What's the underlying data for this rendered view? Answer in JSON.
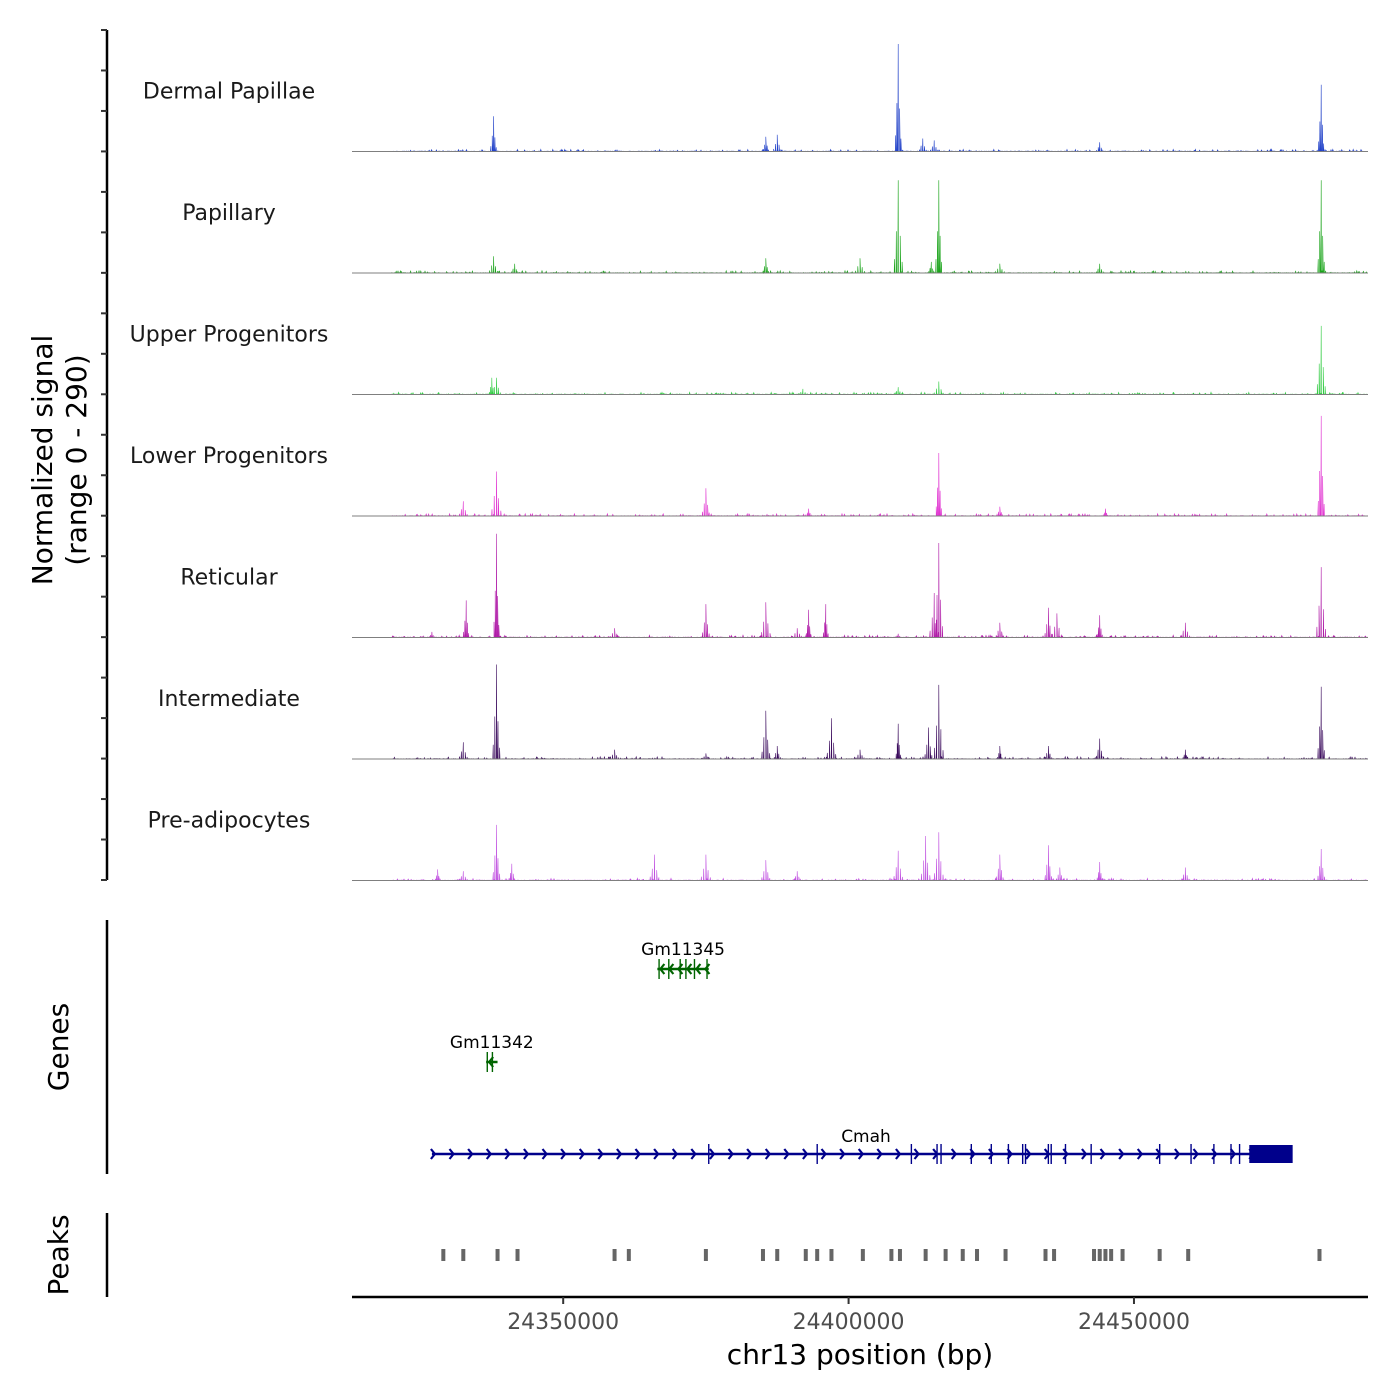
{
  "chart_data": {
    "type": "area",
    "title": "",
    "region": "chr13",
    "xlabel": "chr13 position (bp)",
    "ylabel_line1": "Normalized signal",
    "ylabel_line2": "(range 0 - 290)",
    "xlim": [
      24313000,
      24491000
    ],
    "ylim": [
      0,
      290
    ],
    "x_ticks": [
      24350000,
      24400000,
      24450000
    ],
    "x_tick_labels": [
      "24350000",
      "24400000",
      "24450000"
    ],
    "series": [
      {
        "name": "Dermal Papillae",
        "color": "#2040c8",
        "peaks": [
          [
            24337800,
            95
          ],
          [
            24385500,
            40
          ],
          [
            24387500,
            45
          ],
          [
            24408700,
            290
          ],
          [
            24413000,
            35
          ],
          [
            24415000,
            30
          ],
          [
            24444000,
            25
          ],
          [
            24482800,
            180
          ]
        ]
      },
      {
        "name": "Papillary",
        "color": "#18a318",
        "peaks": [
          [
            24337800,
            45
          ],
          [
            24341500,
            25
          ],
          [
            24385500,
            40
          ],
          [
            24402000,
            40
          ],
          [
            24408700,
            250
          ],
          [
            24414500,
            30
          ],
          [
            24415800,
            250
          ],
          [
            24426500,
            25
          ],
          [
            24444000,
            25
          ],
          [
            24482800,
            250
          ]
        ]
      },
      {
        "name": "Upper Progenitors",
        "color": "#33cc44",
        "peaks": [
          [
            24337500,
            45
          ],
          [
            24338300,
            45
          ],
          [
            24392000,
            15
          ],
          [
            24408700,
            20
          ],
          [
            24415800,
            35
          ],
          [
            24482800,
            185
          ]
        ]
      },
      {
        "name": "Lower Progenitors",
        "color": "#e030d0",
        "peaks": [
          [
            24332500,
            40
          ],
          [
            24338300,
            120
          ],
          [
            24375000,
            75
          ],
          [
            24393000,
            20
          ],
          [
            24415800,
            170
          ],
          [
            24426500,
            25
          ],
          [
            24445000,
            20
          ],
          [
            24482800,
            270
          ]
        ]
      },
      {
        "name": "Reticular",
        "color": "#b01ca8",
        "peaks": [
          [
            24327000,
            15
          ],
          [
            24333000,
            100
          ],
          [
            24338300,
            280
          ],
          [
            24359000,
            25
          ],
          [
            24375000,
            90
          ],
          [
            24385500,
            95
          ],
          [
            24391000,
            25
          ],
          [
            24393000,
            75
          ],
          [
            24396000,
            90
          ],
          [
            24408700,
            10
          ],
          [
            24415000,
            120
          ],
          [
            24415800,
            255
          ],
          [
            24426500,
            40
          ],
          [
            24435000,
            80
          ],
          [
            24436500,
            65
          ],
          [
            24444000,
            60
          ],
          [
            24459000,
            40
          ],
          [
            24482800,
            190
          ]
        ]
      },
      {
        "name": "Intermediate",
        "color": "#3a0a5c",
        "peaks": [
          [
            24332500,
            45
          ],
          [
            24338300,
            255
          ],
          [
            24359000,
            25
          ],
          [
            24375000,
            15
          ],
          [
            24385500,
            130
          ],
          [
            24387500,
            35
          ],
          [
            24397000,
            110
          ],
          [
            24402000,
            25
          ],
          [
            24408700,
            95
          ],
          [
            24414000,
            85
          ],
          [
            24415800,
            200
          ],
          [
            24426500,
            35
          ],
          [
            24435000,
            35
          ],
          [
            24444000,
            55
          ],
          [
            24459000,
            25
          ],
          [
            24482800,
            195
          ]
        ]
      },
      {
        "name": "Pre-adipocytes",
        "color": "#c050e0",
        "peaks": [
          [
            24328000,
            30
          ],
          [
            24332500,
            25
          ],
          [
            24338300,
            150
          ],
          [
            24341000,
            45
          ],
          [
            24366000,
            70
          ],
          [
            24375000,
            70
          ],
          [
            24385500,
            55
          ],
          [
            24391000,
            25
          ],
          [
            24408700,
            80
          ],
          [
            24413500,
            120
          ],
          [
            24415800,
            130
          ],
          [
            24426500,
            70
          ],
          [
            24435000,
            95
          ],
          [
            24437000,
            35
          ],
          [
            24444000,
            50
          ],
          [
            24459000,
            35
          ],
          [
            24482800,
            85
          ]
        ]
      }
    ],
    "genes": [
      {
        "name": "Gm11345",
        "strand": "-",
        "start": 24366500,
        "end": 24375500,
        "row": 0,
        "color": "#006400",
        "exons": [
          24366800,
          24368500,
          24370500,
          24371500,
          24373000,
          24375200
        ]
      },
      {
        "name": "Gm11342",
        "strand": "-",
        "start": 24336500,
        "end": 24338500,
        "row": 1,
        "color": "#006400",
        "exons": [
          24336700,
          24337600
        ]
      },
      {
        "name": "Cmah",
        "strand": "+",
        "start": 24327000,
        "end": 24477500,
        "row": 2,
        "color": "#00008b",
        "exons": [
          24375500,
          24394500,
          24411000,
          24415500,
          24416200,
          24421500,
          24425000,
          24428000,
          24430500,
          24431000,
          24435000,
          24435500,
          24438000,
          24442500,
          24454500,
          24460000,
          24464000,
          24467000,
          24468500
        ],
        "utr_block": [
          24470200,
          24477800
        ]
      }
    ],
    "peaks_track": [
      24329000,
      24332500,
      24338500,
      24342000,
      24359000,
      24361500,
      24375000,
      24385000,
      24387500,
      24392500,
      24394500,
      24397000,
      24402500,
      24407500,
      24409000,
      24413500,
      24417000,
      24420000,
      24422500,
      24427500,
      24434500,
      24436000,
      24443000,
      24444000,
      24445000,
      24446000,
      24448000,
      24454500,
      24459500,
      24482500
    ],
    "panel_labels": {
      "genes": "Genes",
      "peaks": "Peaks"
    }
  }
}
